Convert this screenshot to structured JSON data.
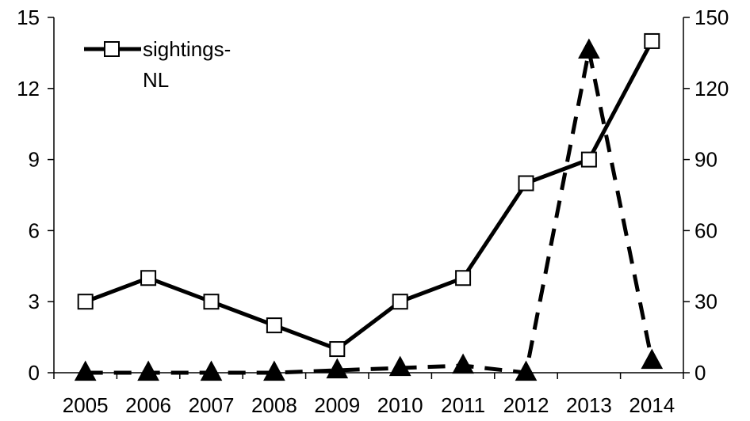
{
  "chart_data": {
    "type": "line",
    "categories": [
      "2005",
      "2006",
      "2007",
      "2008",
      "2009",
      "2010",
      "2011",
      "2012",
      "2013",
      "2014"
    ],
    "y_left": {
      "ticks": [
        "0",
        "3",
        "6",
        "9",
        "12",
        "15"
      ],
      "range": [
        0,
        15
      ]
    },
    "y_right": {
      "ticks": [
        "0",
        "30",
        "60",
        "90",
        "120",
        "150"
      ],
      "range": [
        0,
        150
      ]
    },
    "series": [
      {
        "name": "sightings-NL",
        "axis": "left",
        "style": "solid",
        "marker": "open-square",
        "values": [
          3,
          4,
          3,
          2,
          1,
          3,
          4,
          8,
          9,
          14
        ]
      },
      {
        "axis": "right",
        "style": "dashed",
        "marker": "filled-triangle",
        "values": [
          0,
          0,
          0,
          0,
          1,
          2,
          3,
          0,
          136,
          5
        ]
      }
    ],
    "legend": {
      "position": "top-left",
      "lines": [
        "sightings-",
        "NL"
      ]
    },
    "grid": false
  }
}
